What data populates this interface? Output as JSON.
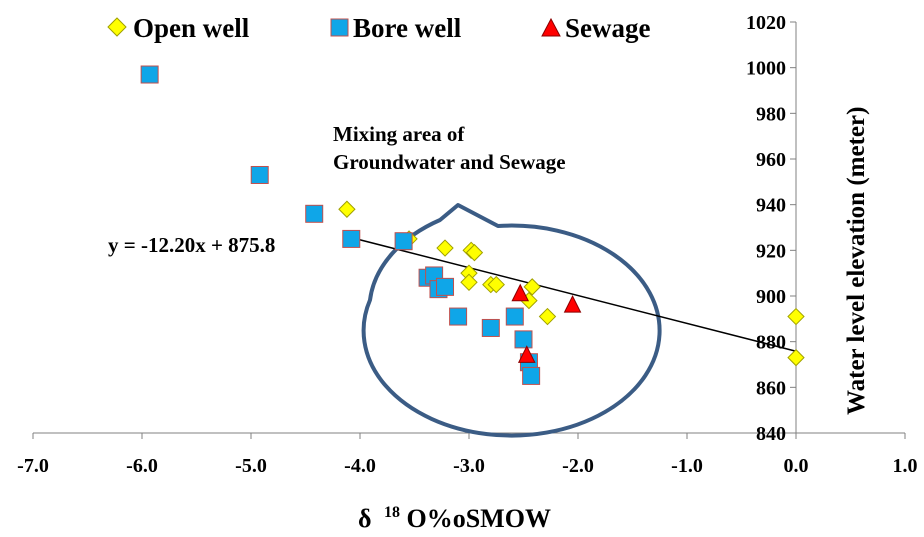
{
  "chart_data": {
    "type": "scatter",
    "xlabel_main": "δ",
    "xlabel_sup": "18",
    "xlabel_rest": "O%oSMOW",
    "ylabel": "Water level elevation (meter)",
    "xlim": [
      -7.0,
      1.0
    ],
    "ylim": [
      840,
      1020
    ],
    "x_ticks": [
      "-7.0",
      "-6.0",
      "-5.0",
      "-4.0",
      "-3.0",
      "-2.0",
      "-1.0",
      "0.0",
      "1.0"
    ],
    "y_ticks": [
      "840",
      "860",
      "880",
      "900",
      "920",
      "940",
      "960",
      "980",
      "1000",
      "1020"
    ],
    "legend_position": "top",
    "series": [
      {
        "name": "Open well",
        "marker": "diamond",
        "color": "#FFFF00",
        "edge": "#A0A000",
        "points": [
          [
            -4.12,
            938
          ],
          [
            -3.55,
            925
          ],
          [
            -3.22,
            921
          ],
          [
            -2.98,
            920
          ],
          [
            -2.95,
            919
          ],
          [
            -3.0,
            910
          ],
          [
            -3.0,
            906
          ],
          [
            -2.8,
            905
          ],
          [
            -2.75,
            905
          ],
          [
            -2.42,
            904
          ],
          [
            -2.45,
            898
          ],
          [
            -2.28,
            891
          ],
          [
            0.0,
            891
          ],
          [
            0.0,
            873
          ]
        ]
      },
      {
        "name": "Bore well",
        "marker": "square",
        "color": "#0FA6E8",
        "edge": "#C0504D",
        "points": [
          [
            -5.93,
            997
          ],
          [
            -4.92,
            953
          ],
          [
            -4.42,
            936
          ],
          [
            -4.08,
            925
          ],
          [
            -3.6,
            924
          ],
          [
            -3.38,
            908
          ],
          [
            -3.32,
            909
          ],
          [
            -3.28,
            903
          ],
          [
            -3.22,
            904
          ],
          [
            -3.1,
            891
          ],
          [
            -2.8,
            886
          ],
          [
            -2.58,
            891
          ],
          [
            -2.5,
            881
          ],
          [
            -2.45,
            871
          ],
          [
            -2.43,
            865
          ]
        ]
      },
      {
        "name": "Sewage",
        "marker": "triangle",
        "color": "#FF0000",
        "edge": "#8B0000",
        "points": [
          [
            -2.53,
            901
          ],
          [
            -2.05,
            896
          ],
          [
            -2.47,
            874
          ]
        ]
      }
    ],
    "trendline": {
      "equation": "y = -12.20x + 875.8",
      "slope": -12.2,
      "intercept": 875.8,
      "x_range": [
        -4.12,
        0.0
      ]
    },
    "annotation": {
      "line1": "Mixing area of",
      "line2": "Groundwater and Sewage"
    },
    "colors": {
      "ellipse_stroke": "#3B5C85",
      "axis": "#808080"
    }
  }
}
